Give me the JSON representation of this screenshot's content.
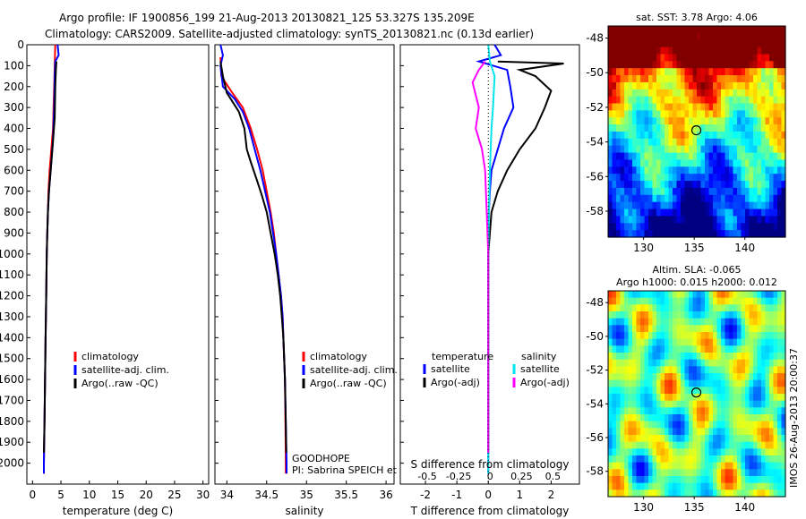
{
  "header": {
    "line1": "Argo profile: IF 1900856_199 21-Aug-2013 20130821_125 53.327S 135.209E",
    "line2": "Climatology: CARS2009. Satellite-adjusted climatology: synTS_20130821.nc (0.13d earlier)"
  },
  "colors": {
    "climatology": "#ff0000",
    "satellite": "#0000ff",
    "argo": "#000000",
    "sal_satellite": "#00e5ee",
    "sal_argo": "#ff00ff"
  },
  "chart_data": [
    {
      "type": "line",
      "name": "temperature-panel",
      "xlabel": "temperature (deg C)",
      "ylabel": "",
      "xlim": [
        -1,
        31
      ],
      "ylim": [
        2100,
        0
      ],
      "xticks": [
        "0",
        "5",
        "10",
        "15",
        "20",
        "25",
        "30"
      ],
      "yticks": [
        "0",
        "100",
        "200",
        "300",
        "400",
        "500",
        "600",
        "700",
        "800",
        "900",
        "1000",
        "1100",
        "1200",
        "1300",
        "1400",
        "1500",
        "1600",
        "1700",
        "1800",
        "1900",
        "2000"
      ],
      "legend": [
        "climatology",
        "satellite-adj. clim.",
        "Argo(..raw -QC)"
      ],
      "series": [
        {
          "name": "climatology",
          "color": "#ff0000",
          "points": [
            [
              4.0,
              0
            ],
            [
              3.9,
              100
            ],
            [
              3.8,
              200
            ],
            [
              3.7,
              300
            ],
            [
              3.6,
              400
            ],
            [
              3.3,
              500
            ],
            [
              3.0,
              600
            ],
            [
              2.8,
              700
            ],
            [
              2.7,
              800
            ],
            [
              2.6,
              900
            ],
            [
              2.5,
              1000
            ],
            [
              2.4,
              1200
            ],
            [
              2.3,
              1400
            ],
            [
              2.2,
              1600
            ],
            [
              2.1,
              1800
            ],
            [
              2.0,
              2000
            ],
            [
              2.0,
              2050
            ]
          ]
        },
        {
          "name": "satellite",
          "color": "#0000ff",
          "points": [
            [
              4.4,
              0
            ],
            [
              4.6,
              50
            ],
            [
              4.0,
              80
            ],
            [
              3.9,
              150
            ],
            [
              3.8,
              300
            ],
            [
              3.6,
              450
            ],
            [
              3.2,
              600
            ],
            [
              2.9,
              700
            ],
            [
              2.7,
              800
            ],
            [
              2.6,
              900
            ],
            [
              2.5,
              1000
            ],
            [
              2.4,
              1200
            ],
            [
              2.3,
              1400
            ],
            [
              2.2,
              1600
            ],
            [
              2.1,
              1800
            ],
            [
              2.0,
              2000
            ],
            [
              2.0,
              2050
            ]
          ]
        },
        {
          "name": "argo",
          "color": "#000000",
          "points": [
            [
              4.2,
              80
            ],
            [
              4.1,
              120
            ],
            [
              4.0,
              200
            ],
            [
              3.9,
              350
            ],
            [
              3.5,
              500
            ],
            [
              3.2,
              600
            ],
            [
              2.9,
              700
            ],
            [
              2.7,
              800
            ],
            [
              2.6,
              900
            ],
            [
              2.5,
              1000
            ],
            [
              2.4,
              1200
            ],
            [
              2.3,
              1400
            ],
            [
              2.2,
              1600
            ],
            [
              2.1,
              1800
            ],
            [
              2.0,
              1950
            ]
          ]
        }
      ]
    },
    {
      "type": "line",
      "name": "salinity-panel",
      "xlabel": "salinity",
      "xlim": [
        33.85,
        36.1
      ],
      "ylim": [
        2100,
        0
      ],
      "xticks": [
        "34",
        "34.5",
        "35",
        "35.5",
        "36"
      ],
      "legend": [
        "climatology",
        "satellite-adj. clim.",
        "Argo(..raw -QC)"
      ],
      "annotations": [
        "GOODHOPE",
        "PI: Sabrina SPEICH et Michel ARHAN"
      ],
      "series": [
        {
          "name": "climatology",
          "color": "#ff0000",
          "points": [
            [
              33.92,
              60
            ],
            [
              33.93,
              150
            ],
            [
              34.05,
              220
            ],
            [
              34.2,
              300
            ],
            [
              34.3,
              400
            ],
            [
              34.38,
              500
            ],
            [
              34.45,
              600
            ],
            [
              34.5,
              700
            ],
            [
              34.55,
              800
            ],
            [
              34.59,
              900
            ],
            [
              34.62,
              1000
            ],
            [
              34.65,
              1100
            ],
            [
              34.68,
              1200
            ],
            [
              34.7,
              1300
            ],
            [
              34.71,
              1400
            ],
            [
              34.72,
              1500
            ],
            [
              34.73,
              1600
            ],
            [
              34.735,
              1800
            ],
            [
              34.74,
              2000
            ],
            [
              34.74,
              2050
            ]
          ]
        },
        {
          "name": "satellite",
          "color": "#0000ff",
          "points": [
            [
              33.92,
              0
            ],
            [
              33.95,
              50
            ],
            [
              33.92,
              100
            ],
            [
              33.95,
              200
            ],
            [
              34.1,
              260
            ],
            [
              34.2,
              320
            ],
            [
              34.28,
              400
            ],
            [
              34.35,
              500
            ],
            [
              34.42,
              600
            ],
            [
              34.48,
              700
            ],
            [
              34.54,
              800
            ],
            [
              34.58,
              900
            ],
            [
              34.62,
              1000
            ],
            [
              34.65,
              1100
            ],
            [
              34.68,
              1200
            ],
            [
              34.7,
              1300
            ],
            [
              34.71,
              1400
            ],
            [
              34.72,
              1500
            ],
            [
              34.73,
              1600
            ],
            [
              34.74,
              1800
            ],
            [
              34.75,
              2000
            ],
            [
              34.75,
              2050
            ]
          ]
        },
        {
          "name": "argo",
          "color": "#000000",
          "points": [
            [
              33.92,
              80
            ],
            [
              33.95,
              150
            ],
            [
              34.0,
              230
            ],
            [
              34.05,
              260
            ],
            [
              34.15,
              320
            ],
            [
              34.22,
              400
            ],
            [
              34.25,
              500
            ],
            [
              34.3,
              560
            ],
            [
              34.38,
              650
            ],
            [
              34.44,
              720
            ],
            [
              34.5,
              800
            ],
            [
              34.55,
              900
            ],
            [
              34.6,
              1000
            ],
            [
              34.64,
              1100
            ],
            [
              34.67,
              1200
            ],
            [
              34.69,
              1300
            ],
            [
              34.71,
              1400
            ],
            [
              34.72,
              1500
            ],
            [
              34.73,
              1600
            ],
            [
              34.74,
              1800
            ],
            [
              34.745,
              1950
            ]
          ]
        }
      ]
    },
    {
      "type": "line",
      "name": "difference-panel",
      "xlabel": "T difference from climatology",
      "x2label": "S difference from climatology",
      "xlim": [
        -2.8,
        2.9
      ],
      "ylim": [
        2100,
        0
      ],
      "xticks": [
        "-2",
        "-1",
        "0",
        "1",
        "2"
      ],
      "x2ticks": [
        "-0.5",
        "-0.25",
        "0",
        "0.25",
        "0.5"
      ],
      "legend_headers": [
        "temperature",
        "salinity"
      ],
      "legend": [
        "satellite",
        "Argo(-adj)",
        "satellite",
        "Argo(-adj)"
      ],
      "series": [
        {
          "name": "temperature satellite",
          "color": "#0000ff",
          "points": [
            [
              0.2,
              0
            ],
            [
              0.4,
              50
            ],
            [
              -0.3,
              80
            ],
            [
              0.6,
              120
            ],
            [
              0.7,
              200
            ],
            [
              0.8,
              300
            ],
            [
              0.5,
              400
            ],
            [
              0.3,
              500
            ],
            [
              0.1,
              600
            ],
            [
              0.05,
              700
            ],
            [
              0.02,
              800
            ],
            [
              0.0,
              900
            ],
            [
              0.0,
              1200
            ],
            [
              0.0,
              1600
            ],
            [
              0.0,
              2000
            ],
            [
              0.0,
              2050
            ]
          ]
        },
        {
          "name": "temperature argo",
          "color": "#000000",
          "points": [
            [
              0.3,
              80
            ],
            [
              2.4,
              90
            ],
            [
              1.0,
              120
            ],
            [
              1.5,
              150
            ],
            [
              2.0,
              220
            ],
            [
              1.8,
              300
            ],
            [
              1.5,
              400
            ],
            [
              1.0,
              500
            ],
            [
              0.6,
              600
            ],
            [
              0.3,
              700
            ],
            [
              0.1,
              800
            ],
            [
              0.05,
              900
            ],
            [
              0.0,
              1000
            ],
            [
              0.0,
              1400
            ],
            [
              0.0,
              1950
            ]
          ]
        },
        {
          "name": "salinity satellite",
          "color": "#00e5ee",
          "points": [
            [
              0.0,
              0
            ],
            [
              0.05,
              80
            ],
            [
              0.2,
              150
            ],
            [
              0.15,
              300
            ],
            [
              0.1,
              400
            ],
            [
              0.05,
              600
            ],
            [
              0.02,
              800
            ],
            [
              0.0,
              1000
            ],
            [
              0.0,
              1500
            ],
            [
              0.0,
              2050
            ]
          ]
        },
        {
          "name": "salinity argo",
          "color": "#ff00ff",
          "points": [
            [
              -0.1,
              80
            ],
            [
              -0.3,
              120
            ],
            [
              -0.5,
              180
            ],
            [
              -0.3,
              300
            ],
            [
              -0.4,
              400
            ],
            [
              -0.2,
              500
            ],
            [
              -0.1,
              600
            ],
            [
              -0.05,
              800
            ],
            [
              0.0,
              1000
            ],
            [
              0.0,
              1500
            ],
            [
              0.0,
              1950
            ]
          ]
        }
      ]
    },
    {
      "type": "heatmap",
      "name": "sst-map",
      "title": "sat. SST: 3.78 Argo: 4.06",
      "xlim": [
        126.5,
        144
      ],
      "ylim": [
        -59.5,
        -47.3
      ],
      "xticks": [
        "130",
        "135",
        "140"
      ],
      "yticks": [
        "-48",
        "-50",
        "-52",
        "-54",
        "-56",
        "-58"
      ],
      "marker": [
        135.209,
        -53.327
      ]
    },
    {
      "type": "heatmap",
      "name": "sla-map",
      "title": "Altim. SLA: -0.065",
      "subtitle": "Argo h1000: 0.015 h2000: 0.012",
      "xlim": [
        126.5,
        144
      ],
      "ylim": [
        -59.5,
        -47.3
      ],
      "xticks": [
        "130",
        "135",
        "140"
      ],
      "yticks": [
        "-48",
        "-50",
        "-52",
        "-54",
        "-56",
        "-58"
      ],
      "marker": [
        135.209,
        -53.327
      ]
    }
  ],
  "footer": {
    "stamp": "IMOS 26-Aug-2013 20:00:37"
  }
}
